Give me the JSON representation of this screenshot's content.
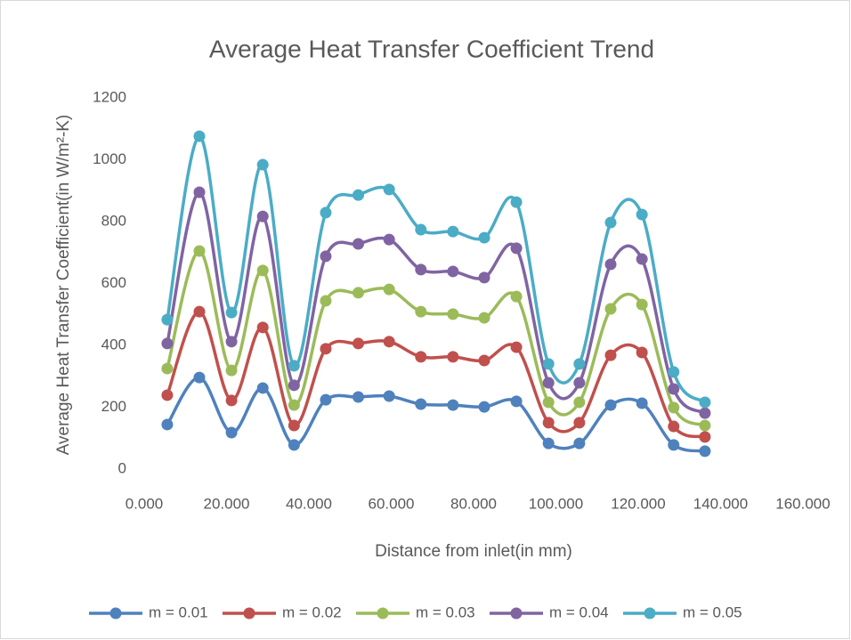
{
  "chart_data": {
    "type": "line",
    "title": "Average Heat Transfer Coefficient Trend",
    "x_label": "Distance from inlet(in mm)",
    "y_label": "Average Heat Transfer Coefficient(in W/m²-K)",
    "x": [
      5.6,
      13.4,
      21.2,
      28.8,
      36.4,
      44.1,
      52.0,
      59.5,
      67.2,
      75.0,
      82.6,
      90.4,
      98.2,
      105.7,
      113.3,
      120.9,
      128.6,
      136.2
    ],
    "series": [
      {
        "name": "m = 0.01",
        "color": "#4f81bd",
        "values": [
          144,
          296,
          118,
          262,
          78,
          224,
          233,
          236,
          210,
          207,
          201,
          219,
          83,
          83,
          207,
          213,
          78,
          58
        ]
      },
      {
        "name": "m = 0.02",
        "color": "#c0504d",
        "values": [
          239,
          509,
          222,
          458,
          141,
          389,
          406,
          412,
          363,
          363,
          351,
          394,
          150,
          150,
          368,
          377,
          138,
          104
        ]
      },
      {
        "name": "m = 0.03",
        "color": "#9bbb59",
        "values": [
          325,
          705,
          319,
          642,
          207,
          544,
          570,
          581,
          509,
          501,
          489,
          558,
          216,
          216,
          518,
          532,
          199,
          141
        ]
      },
      {
        "name": "m = 0.04",
        "color": "#8064a2",
        "values": [
          406,
          895,
          412,
          817,
          271,
          688,
          728,
          742,
          645,
          639,
          619,
          714,
          279,
          279,
          662,
          679,
          259,
          181
        ]
      },
      {
        "name": "m = 0.05",
        "color": "#4bacc6",
        "values": [
          483,
          1076,
          506,
          984,
          334,
          829,
          886,
          904,
          774,
          768,
          748,
          863,
          340,
          340,
          797,
          823,
          314,
          216
        ]
      }
    ],
    "xlim": [
      0,
      160
    ],
    "xticks": [
      {
        "value": 0,
        "label": "0.000"
      },
      {
        "value": 20,
        "label": "20.000"
      },
      {
        "value": 40,
        "label": "40.000"
      },
      {
        "value": 60,
        "label": "60.000"
      },
      {
        "value": 80,
        "label": "80.000"
      },
      {
        "value": 100,
        "label": "100.000"
      },
      {
        "value": 120,
        "label": "120.000"
      },
      {
        "value": 140,
        "label": "140.000"
      },
      {
        "value": 160,
        "label": "160.000"
      }
    ],
    "ylim": [
      0,
      1200
    ],
    "yticks": [
      0,
      200,
      400,
      600,
      800,
      1000,
      1200
    ],
    "grid": false,
    "smooth": true,
    "legend": "bottom"
  }
}
